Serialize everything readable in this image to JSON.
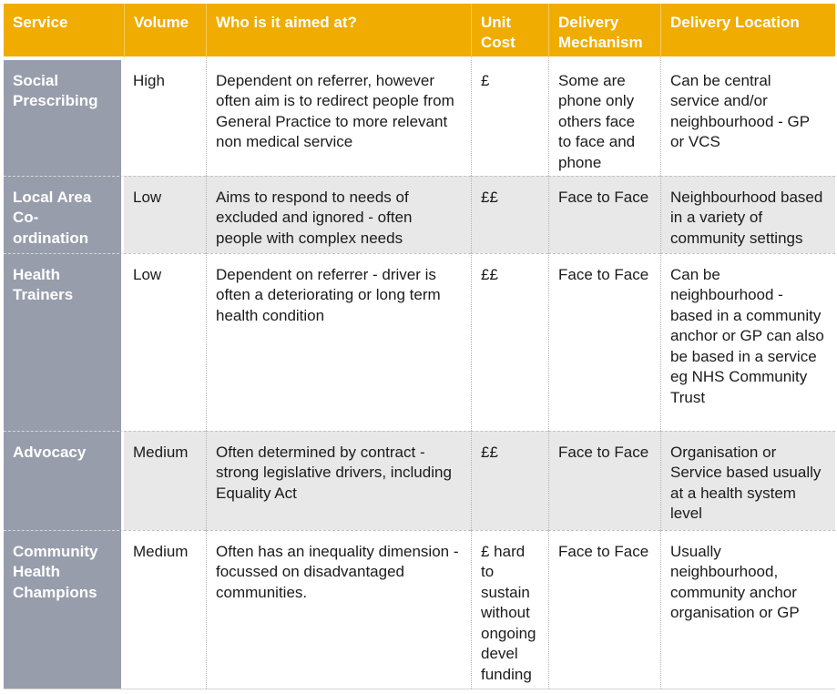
{
  "table": {
    "columns": [
      {
        "label": "Service"
      },
      {
        "label": "Volume"
      },
      {
        "label": "Who is it aimed at?"
      },
      {
        "label": "Unit Cost"
      },
      {
        "label": "Delivery Mechanism"
      },
      {
        "label": "Delivery Location"
      }
    ],
    "rows": [
      {
        "service": "Social Prescribing",
        "volume": "High",
        "audience": "Dependent on referrer, however often aim is to redirect people from General Practice to more relevant non medical service",
        "unit_cost": "£",
        "delivery_mechanism": "Some are phone only others face to face and phone",
        "delivery_location": "Can be central service and/or neighbourhood - GP or VCS"
      },
      {
        "service": "Local Area Co-ordination",
        "volume": "Low",
        "audience": "Aims to respond to needs of excluded and ignored - often people with complex needs",
        "unit_cost": "££",
        "delivery_mechanism": "Face to Face",
        "delivery_location": "Neighbourhood based in a variety of community settings"
      },
      {
        "service": "Health Trainers",
        "volume": "Low",
        "audience": "Dependent on referrer - driver is often a deteriorating or long term health condition",
        "unit_cost": "££",
        "delivery_mechanism": "Face to Face",
        "delivery_location": "Can be neighbourhood - based in a community anchor or GP can also be based in a service eg NHS Community Trust"
      },
      {
        "service": "Advocacy",
        "volume": "Medium",
        "audience": "Often determined by contract - strong legislative drivers, including Equality Act",
        "unit_cost": "££",
        "delivery_mechanism": "Face to Face",
        "delivery_location": "Organisation or Service based usually at a health system level"
      },
      {
        "service": "Community Health Champions",
        "volume": "Medium",
        "audience": "Often has an inequality dimension - focussed on disadvantaged communities.",
        "unit_cost": "£ hard to sustain without ongoing devel funding",
        "delivery_mechanism": "Face to Face",
        "delivery_location": "Usually neighbourhood, community anchor organisation or GP"
      }
    ]
  },
  "colors": {
    "header_bg": "#F0AC00",
    "header_text": "#FFFFFF",
    "service_column_bg": "#979DAB",
    "service_column_text": "#FFFFFF",
    "alt_row_bg": "#E9E8E8",
    "body_text": "#1B1B1B"
  }
}
